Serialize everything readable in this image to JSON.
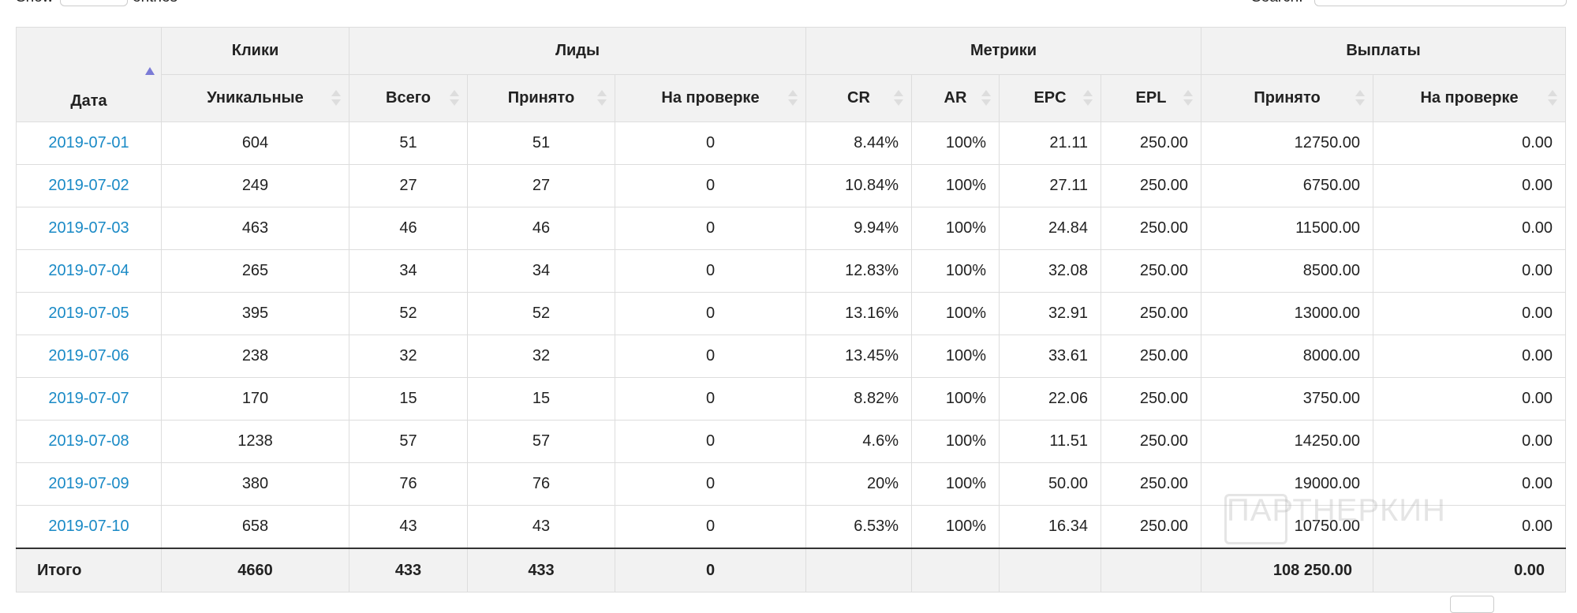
{
  "controls": {
    "show": "Show",
    "entries": "entries",
    "search": "Search:"
  },
  "table": {
    "header_groups": [
      "Клики",
      "Лиды",
      "Метрики",
      "Выплаты"
    ],
    "columns": [
      "Дата",
      "Уникальные",
      "Всего",
      "Принято",
      "На проверке",
      "CR",
      "AR",
      "EPC",
      "EPL",
      "Принято",
      "На проверке"
    ],
    "rows": [
      [
        "2019-07-01",
        "604",
        "51",
        "51",
        "0",
        "8.44%",
        "100%",
        "21.11",
        "250.00",
        "12750.00",
        "0.00"
      ],
      [
        "2019-07-02",
        "249",
        "27",
        "27",
        "0",
        "10.84%",
        "100%",
        "27.11",
        "250.00",
        "6750.00",
        "0.00"
      ],
      [
        "2019-07-03",
        "463",
        "46",
        "46",
        "0",
        "9.94%",
        "100%",
        "24.84",
        "250.00",
        "11500.00",
        "0.00"
      ],
      [
        "2019-07-04",
        "265",
        "34",
        "34",
        "0",
        "12.83%",
        "100%",
        "32.08",
        "250.00",
        "8500.00",
        "0.00"
      ],
      [
        "2019-07-05",
        "395",
        "52",
        "52",
        "0",
        "13.16%",
        "100%",
        "32.91",
        "250.00",
        "13000.00",
        "0.00"
      ],
      [
        "2019-07-06",
        "238",
        "32",
        "32",
        "0",
        "13.45%",
        "100%",
        "33.61",
        "250.00",
        "8000.00",
        "0.00"
      ],
      [
        "2019-07-07",
        "170",
        "15",
        "15",
        "0",
        "8.82%",
        "100%",
        "22.06",
        "250.00",
        "3750.00",
        "0.00"
      ],
      [
        "2019-07-08",
        "1238",
        "57",
        "57",
        "0",
        "4.6%",
        "100%",
        "11.51",
        "250.00",
        "14250.00",
        "0.00"
      ],
      [
        "2019-07-09",
        "380",
        "76",
        "76",
        "0",
        "20%",
        "100%",
        "50.00",
        "250.00",
        "19000.00",
        "0.00"
      ],
      [
        "2019-07-10",
        "658",
        "43",
        "43",
        "0",
        "6.53%",
        "100%",
        "16.34",
        "250.00",
        "10750.00",
        "0.00"
      ]
    ],
    "totals": [
      "Итого",
      "4660",
      "433",
      "433",
      "0"
    ],
    "totals_payouts": [
      "108 250.00",
      "0.00"
    ]
  },
  "watermark": "ПАРТНЕРКИН"
}
